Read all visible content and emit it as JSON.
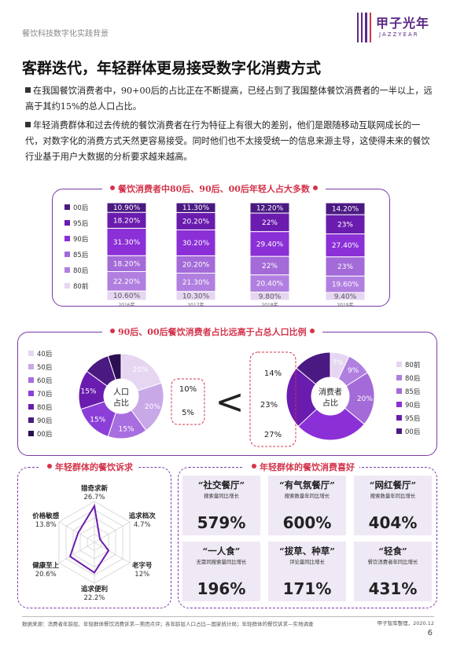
{
  "header": {
    "doc_title": "餐饮科技数字化实践背景",
    "logo_cn": "甲子光年",
    "logo_en": "JAZZYEAR"
  },
  "title": "客群迭代，年轻群体更易接受数字化消费方式",
  "paragraphs": [
    "在我国餐饮消费者中，90+00后的占比正在不断提高，已经占到了我国整体餐饮消费者的一半以上，远高于其约15%的总人口占比。",
    "年轻消费群体和过去传统的餐饮消费者在行为特征上有很大的差别，他们是跟随移动互联网成长的一代，对数字化的消费方式天然更容易接受。同时他们也不太接受统一的信息来源主导，这使得未来的餐饮行业基于用户大数据的分析要求越来越高。"
  ],
  "colors": {
    "purple_dark": "#3a0a6b",
    "accent_red": "#d3344b",
    "border": "#7a3aa6"
  },
  "chart_data": [
    {
      "type": "bar",
      "title": "餐饮消费者中80后、90后、00后年轻人占大多数",
      "stacked": true,
      "categories": [
        "2016年",
        "2017年",
        "2018年",
        "2019年"
      ],
      "series": [
        {
          "name": "80前",
          "values": [
            10.6,
            10.3,
            9.8,
            9.4
          ],
          "labels": [
            "10.60%",
            "10.30%",
            "9.80%",
            "9.40%"
          ],
          "color": "#e6d6f2"
        },
        {
          "name": "80后",
          "values": [
            22.2,
            21.3,
            20.4,
            19.6
          ],
          "labels": [
            "22.20%",
            "21.30%",
            "20.40%",
            "19.60%"
          ],
          "color": "#b07fe0"
        },
        {
          "name": "85后",
          "values": [
            18.2,
            20.2,
            22,
            23
          ],
          "labels": [
            "18.20%",
            "20.20%",
            "22%",
            "23%"
          ],
          "color": "#a46ad8"
        },
        {
          "name": "90后",
          "values": [
            31.3,
            30.2,
            29.4,
            27.4
          ],
          "labels": [
            "31.30%",
            "30.20%",
            "29.40%",
            "27.40%"
          ],
          "color": "#8b2fd6"
        },
        {
          "name": "95后",
          "values": [
            18.2,
            20.2,
            22,
            23
          ],
          "labels": [
            "18.20%",
            "20.20%",
            "22%",
            "23%"
          ],
          "color": "#6a1cae"
        },
        {
          "name": "00后",
          "values": [
            10.9,
            11.3,
            12.2,
            14.2
          ],
          "labels": [
            "10.90%",
            "11.30%",
            "12.20%",
            "14.20%"
          ],
          "color": "#4a1a82"
        }
      ],
      "legend": [
        "00后",
        "95后",
        "90后",
        "85后",
        "80后",
        "80前"
      ]
    },
    {
      "type": "pie",
      "title": "90后、00后餐饮消费者占比远高于占总人口比例",
      "center_label": "人口占比",
      "labels": [
        "40后",
        "50后",
        "60后",
        "70后",
        "80后",
        "90后",
        "00后"
      ],
      "values": [
        20,
        20,
        15,
        15,
        15,
        10,
        5
      ],
      "value_labels": [
        "20%",
        "20%",
        "15%",
        "15%",
        "15%",
        "10%",
        "5%"
      ],
      "colors": [
        "#e6d6f2",
        "#c9a8e8",
        "#a86ee0",
        "#8b3fd8",
        "#6a1cae",
        "#4a1a82",
        "#2b0f52"
      ]
    },
    {
      "type": "pie",
      "center_label": "消费者占比",
      "labels": [
        "80前",
        "80后",
        "85后",
        "90后",
        "95后",
        "00后"
      ],
      "values": [
        7,
        9,
        20,
        27,
        23,
        14
      ],
      "value_labels": [
        "7%",
        "9%",
        "20%",
        "27%",
        "23%",
        "14%"
      ],
      "colors": [
        "#e6d6f2",
        "#b07fe0",
        "#a46ad8",
        "#8b2fd6",
        "#6a1cae",
        "#4a1a82"
      ]
    },
    {
      "type": "radar",
      "title": "年轻群体的餐饮诉求",
      "labels": [
        "猎奇求新",
        "追求档次",
        "老字号",
        "追求便利",
        "健康至上",
        "价格敏感"
      ],
      "values": [
        26.7,
        4.7,
        12,
        22.2,
        20.6,
        13.8
      ],
      "value_labels": [
        "26.7%",
        "4.7%",
        "12%",
        "22.2%",
        "20.6%",
        "13.8%"
      ],
      "max": 30
    }
  ],
  "comparison_sign": "<",
  "preferences": {
    "title": "年轻群体的餐饮消费喜好",
    "cards": [
      {
        "title": "“社交餐厅”",
        "sub": "搜索量同比增长",
        "value": "579%"
      },
      {
        "title": "“有气氛餐厅”",
        "sub": "搜索数量年同比增长",
        "value": "600%"
      },
      {
        "title": "“网红餐厅”",
        "sub": "搜索数量年同比增长",
        "value": "404%"
      },
      {
        "title": "“一人食”",
        "sub": "无需同搜索量同比增长",
        "value": "196%"
      },
      {
        "title": "“拔草、种草”",
        "sub": "评论量同比增长",
        "value": "171%"
      },
      {
        "title": "“轻食”",
        "sub": "餐饮消费者年同比增长",
        "value": "431%"
      }
    ]
  },
  "footer": {
    "source": "数据来源：消费者年龄层、年轻群体餐饮消费诉求—美团点评；各年龄层人口占比—国家统计局；年轻群体的餐饮诉求—实地调查",
    "credit": "甲子智库整理，2020.12",
    "page": "6"
  }
}
